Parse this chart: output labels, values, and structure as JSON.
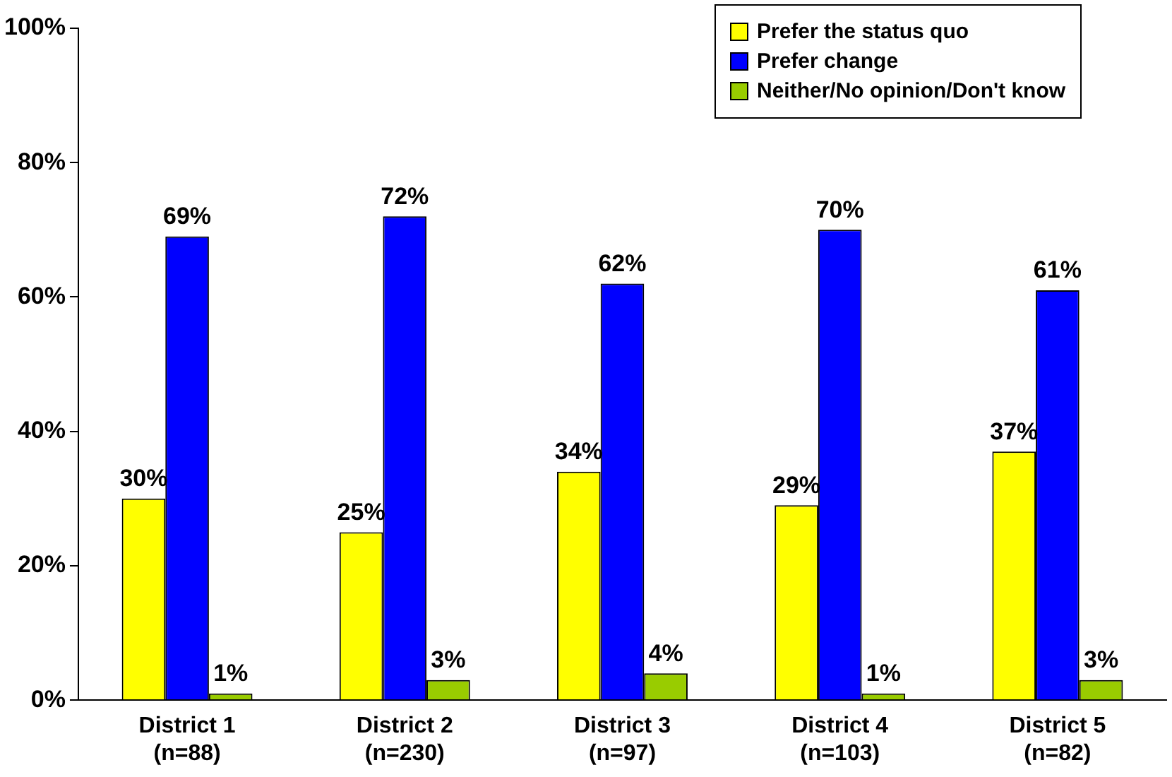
{
  "chart_data": {
    "type": "bar",
    "categories": [
      "District 1\n(n=88)",
      "District 2\n(n=230)",
      "District 3\n(n=97)",
      "District 4\n(n=103)",
      "District 5\n(n=82)"
    ],
    "series": [
      {
        "name": "Prefer the status quo",
        "color": "#ffff00",
        "values": [
          30,
          25,
          34,
          29,
          37
        ],
        "value_labels": [
          "30%",
          "25%",
          "34%",
          "29%",
          "37%"
        ]
      },
      {
        "name": "Prefer change",
        "color": "#0000ff",
        "values": [
          69,
          72,
          62,
          70,
          61
        ],
        "value_labels": [
          "69%",
          "72%",
          "62%",
          "70%",
          "61%"
        ]
      },
      {
        "name": "Neither/No opinion/Don't know",
        "color": "#99cc00",
        "values": [
          1,
          3,
          4,
          1,
          3
        ],
        "value_labels": [
          "1%",
          "3%",
          "4%",
          "1%",
          "3%"
        ]
      }
    ],
    "ylim": [
      0,
      100
    ],
    "yticks": [
      {
        "value": 0,
        "label": "0%"
      },
      {
        "value": 20,
        "label": "20%"
      },
      {
        "value": 40,
        "label": "40%"
      },
      {
        "value": 60,
        "label": "60%"
      },
      {
        "value": 80,
        "label": "80%"
      },
      {
        "value": 100,
        "label": "100%"
      }
    ],
    "grid": false,
    "legend": "top right"
  }
}
